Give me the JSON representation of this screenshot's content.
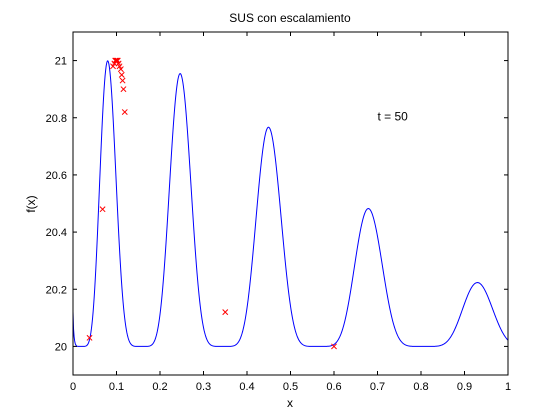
{
  "chart_data": {
    "type": "line",
    "title": "SUS con escalamiento",
    "xlabel": "x",
    "ylabel": "f(x)",
    "xlim": [
      0,
      1
    ],
    "ylim": [
      19.9,
      21.1
    ],
    "xticks": [
      "0",
      "0.1",
      "0.2",
      "0.3",
      "0.4",
      "0.5",
      "0.6",
      "0.7",
      "0.8",
      "0.9",
      "1"
    ],
    "yticks": [
      "20",
      "20.2",
      "20.4",
      "20.6",
      "20.8",
      "21"
    ],
    "annotation": "t = 50",
    "annotation_pos": [
      0.7,
      20.79
    ],
    "grid": false,
    "colors": {
      "curve": "#0000ff",
      "markers": "#ff0000",
      "axes": "#000000"
    },
    "series": [
      {
        "kind": "function",
        "formula": "20 + exp(-2 ln2 ((x-0.1)/0.8)^2) * sin(5 pi (x^0.75 - 0.05))^6",
        "sampled_peaks": [
          {
            "x": 0.1,
            "y": 21.0
          },
          {
            "x": 0.3,
            "y": 20.92
          },
          {
            "x": 0.5,
            "y": 20.71
          },
          {
            "x": 0.7,
            "y": 20.46
          },
          {
            "x": 0.9,
            "y": 20.25
          }
        ],
        "baseline": 20.0
      },
      {
        "kind": "markers",
        "marker": "x",
        "points": [
          {
            "x": 0.038,
            "y": 20.03
          },
          {
            "x": 0.068,
            "y": 20.48
          },
          {
            "x": 0.092,
            "y": 20.98
          },
          {
            "x": 0.095,
            "y": 20.99
          },
          {
            "x": 0.097,
            "y": 21.0
          },
          {
            "x": 0.099,
            "y": 21.0
          },
          {
            "x": 0.101,
            "y": 21.0
          },
          {
            "x": 0.103,
            "y": 21.0
          },
          {
            "x": 0.105,
            "y": 20.99
          },
          {
            "x": 0.107,
            "y": 20.98
          },
          {
            "x": 0.11,
            "y": 20.97
          },
          {
            "x": 0.112,
            "y": 20.95
          },
          {
            "x": 0.114,
            "y": 20.93
          },
          {
            "x": 0.116,
            "y": 20.9
          },
          {
            "x": 0.119,
            "y": 20.82
          },
          {
            "x": 0.35,
            "y": 20.12
          },
          {
            "x": 0.6,
            "y": 20.0
          }
        ]
      }
    ]
  }
}
